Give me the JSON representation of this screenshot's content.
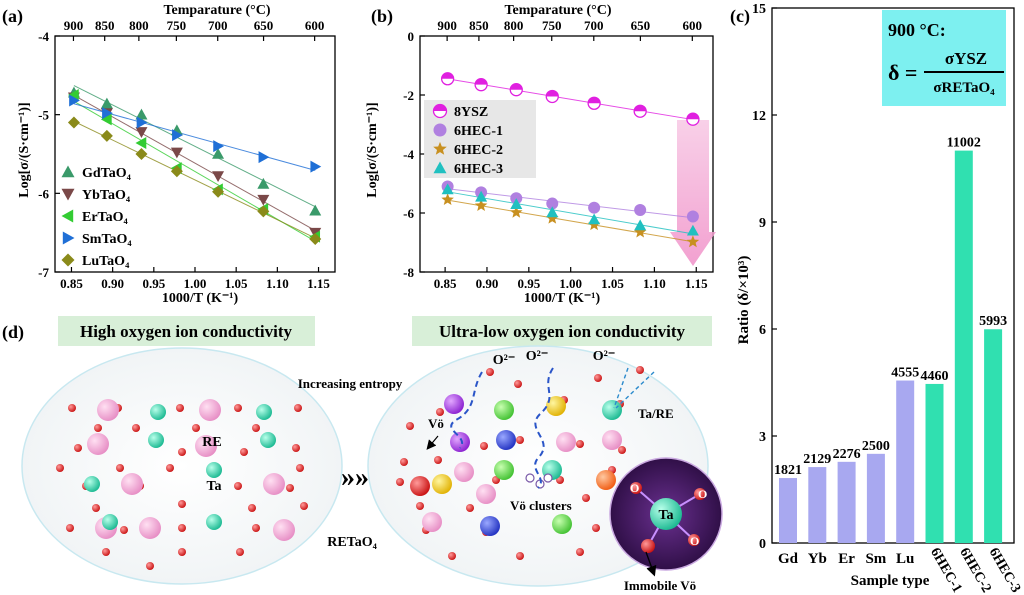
{
  "chart_data": [
    {
      "panel": "(a)",
      "type": "scatter",
      "title": "",
      "top_axis_label": "Temparature (°C)",
      "top_ticks": [
        "900",
        "850",
        "800",
        "750",
        "700",
        "650",
        "600"
      ],
      "top_tick_temps": [
        900,
        850,
        800,
        750,
        700,
        650,
        600
      ],
      "xlabel": "1000/T (K⁻¹)",
      "ylabel": "Log[σ/(S·cm⁻¹)]",
      "xlim": [
        0.83,
        1.17
      ],
      "ylim": [
        -7,
        -4
      ],
      "xticks": [
        0.85,
        0.9,
        0.95,
        1.0,
        1.05,
        1.1,
        1.15
      ],
      "xtick_labels": [
        "0.85",
        "0.90",
        "0.95",
        "1.00",
        "1.05",
        "1.10",
        "1.15"
      ],
      "yticks": [
        -4,
        -5,
        -6,
        -7
      ],
      "ytick_labels": [
        "-4",
        "-5",
        "-6",
        "-7"
      ],
      "x": [
        0.853,
        0.893,
        0.935,
        0.978,
        1.028,
        1.083,
        1.146
      ],
      "legend_position": "lower-left",
      "series": [
        {
          "name": "GdTaO₄",
          "marker": "triangle-up",
          "color": "#3a9a6a",
          "values": [
            -4.72,
            -4.86,
            -5.0,
            -5.2,
            -5.5,
            -5.88,
            -6.22
          ]
        },
        {
          "name": "YbTaO₄",
          "marker": "triangle-down",
          "color": "#7a4848",
          "values": [
            -4.78,
            -4.98,
            -5.22,
            -5.48,
            -5.78,
            -6.08,
            -6.5
          ]
        },
        {
          "name": "ErTaO₄",
          "marker": "triangle-left",
          "color": "#33cc33",
          "values": [
            -4.75,
            -5.06,
            -5.36,
            -5.68,
            -5.95,
            -6.2,
            -6.55
          ]
        },
        {
          "name": "SmTaO₄",
          "marker": "triangle-right",
          "color": "#1f6fd6",
          "values": [
            -4.82,
            -4.98,
            -5.1,
            -5.26,
            -5.4,
            -5.54,
            -5.66
          ]
        },
        {
          "name": "LuTaO₄",
          "marker": "diamond",
          "color": "#8a8a1a",
          "values": [
            -5.1,
            -5.27,
            -5.5,
            -5.72,
            -5.98,
            -6.23,
            -6.58
          ]
        }
      ]
    },
    {
      "panel": "(b)",
      "type": "scatter",
      "title": "",
      "top_axis_label": "Temparature (°C)",
      "top_ticks": [
        "900",
        "850",
        "800",
        "750",
        "700",
        "650",
        "600"
      ],
      "top_tick_temps": [
        900,
        850,
        800,
        750,
        700,
        650,
        600
      ],
      "xlabel": "1000/T (K⁻¹)",
      "ylabel": "Log[σ/(S·cm⁻¹)]",
      "xlim": [
        0.82,
        1.17
      ],
      "ylim": [
        -8,
        0
      ],
      "xticks": [
        0.85,
        0.9,
        0.95,
        1.0,
        1.05,
        1.1,
        1.15
      ],
      "xtick_labels": [
        "0.85",
        "0.90",
        "0.95",
        "1.00",
        "1.05",
        "1.10",
        "1.15"
      ],
      "yticks": [
        0,
        -2,
        -4,
        -6,
        -8
      ],
      "ytick_labels": [
        "0",
        "-2",
        "-4",
        "-6",
        "-8"
      ],
      "x": [
        0.853,
        0.893,
        0.935,
        0.978,
        1.028,
        1.083,
        1.146
      ],
      "legend_position": "center-left",
      "series": [
        {
          "name": "8YSZ",
          "marker": "half-circle",
          "color": "#e020e0",
          "values": [
            -1.45,
            -1.65,
            -1.82,
            -2.05,
            -2.28,
            -2.55,
            -2.82
          ]
        },
        {
          "name": "6HEC-1",
          "marker": "circle",
          "color": "#b080e0",
          "values": [
            -5.1,
            -5.3,
            -5.5,
            -5.68,
            -5.82,
            -5.9,
            -6.12
          ]
        },
        {
          "name": "6HEC-2",
          "marker": "star",
          "color": "#c89020",
          "values": [
            -5.55,
            -5.75,
            -5.98,
            -6.18,
            -6.4,
            -6.65,
            -6.98
          ]
        },
        {
          "name": "6HEC-3",
          "marker": "triangle-up",
          "color": "#20c0c0",
          "values": [
            -5.2,
            -5.45,
            -5.7,
            -5.98,
            -6.22,
            -6.42,
            -6.6
          ]
        }
      ]
    },
    {
      "panel": "(c)",
      "type": "bar",
      "title": "",
      "xlabel": "Sample type",
      "ylabel": "Ratio (δ/×10³)",
      "ylim": [
        0,
        15
      ],
      "yticks": [
        0,
        3,
        6,
        9,
        12,
        15
      ],
      "ytick_labels": [
        "0",
        "3",
        "6",
        "9",
        "12",
        "15"
      ],
      "categories": [
        "Gd",
        "Yb",
        "Er",
        "Sm",
        "Lu",
        "6HEC-1",
        "6HEC-2",
        "6HEC-3"
      ],
      "values": [
        1821,
        2129,
        2276,
        2500,
        4555,
        4460,
        11002,
        5993
      ],
      "value_labels": [
        "1821",
        "2129",
        "2276",
        "2500",
        "4555",
        "4460",
        "11002",
        "5993"
      ],
      "colors": [
        "#a8a8f0",
        "#a8a8f0",
        "#a8a8f0",
        "#a8a8f0",
        "#a8a8f0",
        "#30e0b0",
        "#30e0b0",
        "#30e0b0"
      ],
      "annotation": {
        "temp": "900 °C:",
        "delta": "δ =",
        "num": "σYSZ",
        "den": "σRETaO₄"
      }
    }
  ],
  "panel_labels": {
    "a": "(a)",
    "b": "(b)",
    "c": "(c)",
    "d": "(d)"
  },
  "schematic": {
    "left_title": "High oxygen ion conductivity",
    "right_title": "Ultra-low oxygen ion conductivity",
    "increasing_entropy": "Increasing entropy",
    "arrow": "»»",
    "re_label": "RE",
    "ta_label": "Ta",
    "retao4_label": "RETaO₄",
    "o2_label": "O²⁻",
    "vo_label": "Vö",
    "ta_re_label": "Ta/RE",
    "vo_clusters_label": "Vö clusters",
    "immobile_vo_label": "Immobile Vö",
    "inset_center": "Ta",
    "inset_o": "O"
  },
  "colors": {
    "accent": "#e020e0",
    "oxygen": "#dd1f1f",
    "re": "#f2a6d6",
    "ta": "#2fd6b0",
    "title_bg": "#d8efd8",
    "annot_bg": "#7df0f0"
  }
}
